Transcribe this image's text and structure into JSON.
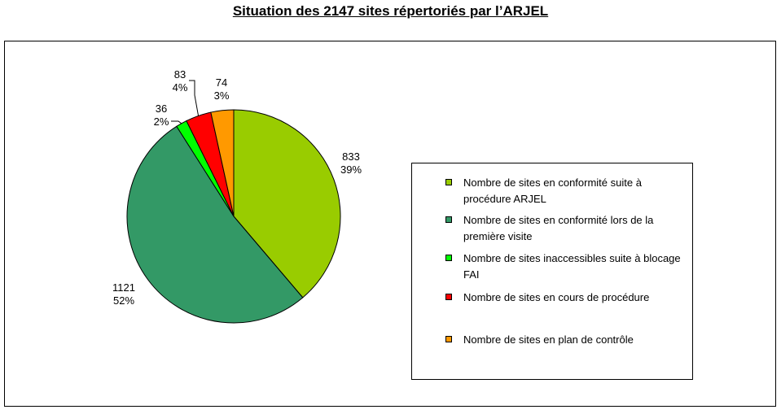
{
  "title": "Situation des 2147 sites répertoriés par l’ARJEL",
  "chart_data": {
    "type": "pie",
    "title": "Situation des 2147 sites répertoriés par l’ARJEL",
    "legend_position": "right",
    "slices": [
      {
        "label": "Nombre de sites en conformité suite à procédure ARJEL",
        "value": 833,
        "value_text": "833",
        "percent_text": "39%",
        "color": "#99cc00"
      },
      {
        "label": "Nombre de sites en conformité lors de la première visite",
        "value": 1121,
        "value_text": "1121",
        "percent_text": "52%",
        "color": "#339966"
      },
      {
        "label": "Nombre de sites inaccessibles suite à blocage FAI",
        "value": 36,
        "value_text": "36",
        "percent_text": "2%",
        "color": "#00ff00"
      },
      {
        "label": "Nombre de sites en cours de procédure",
        "value": 83,
        "value_text": "83",
        "percent_text": "4%",
        "color": "#ff0000"
      },
      {
        "label": "Nombre de sites en plan de contrôle",
        "value": 74,
        "value_text": "74",
        "percent_text": "3%",
        "color": "#ff9900"
      }
    ]
  }
}
